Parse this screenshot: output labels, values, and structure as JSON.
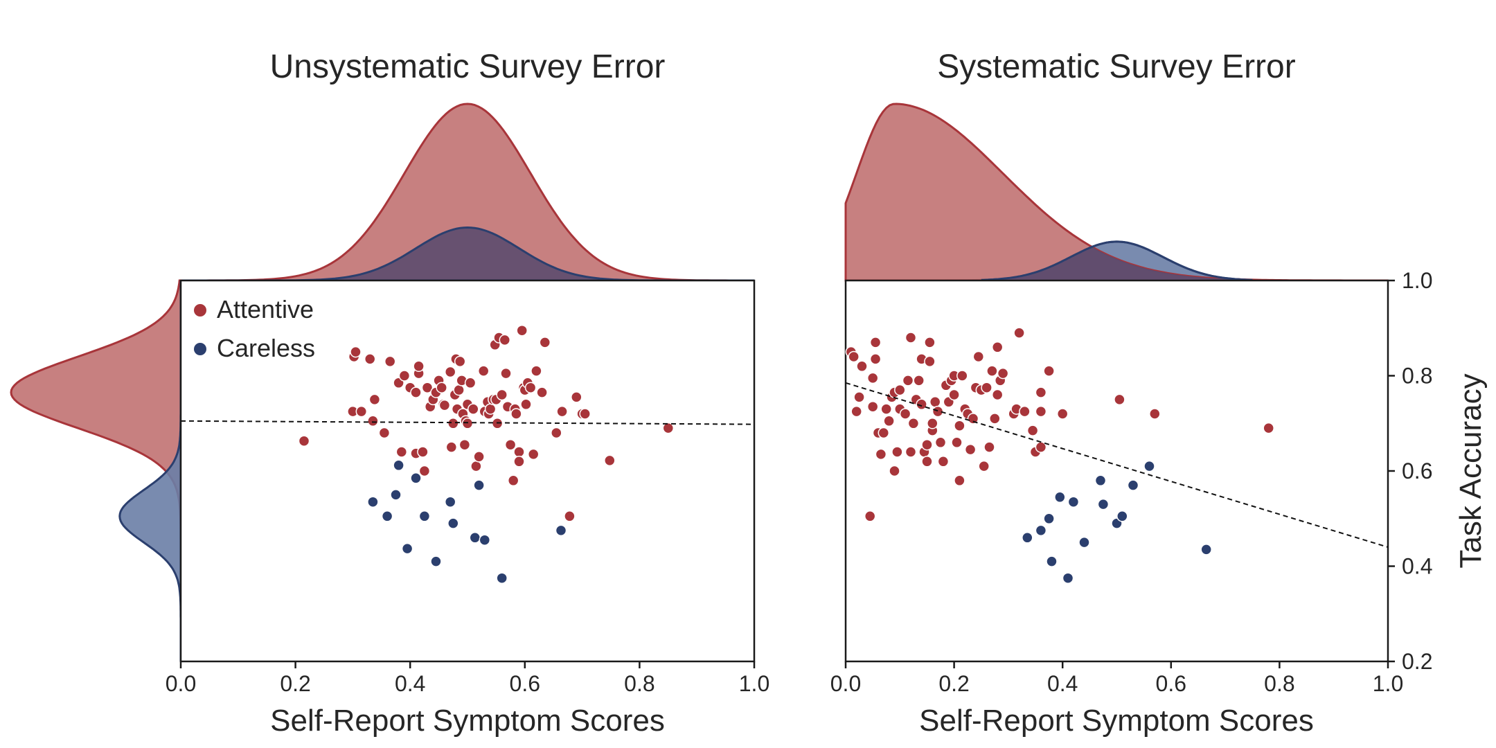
{
  "colors": {
    "attentive": "#a8353a",
    "attentive_fill": "#c17272",
    "careless": "#2b3f6e",
    "careless_fill": "#6a7ea6",
    "overlap_fill": "#5c4b6e",
    "axis": "#1a1a1a",
    "trend": "#111111"
  },
  "legend": {
    "attentive": "Attentive",
    "careless": "Careless",
    "position": "upper-left"
  },
  "chart_data": [
    {
      "type": "scatter",
      "title": "Unsystematic Survey Error",
      "xlabel": "Self-Report Symptom Scores",
      "ylabel": "",
      "xlim": [
        0.0,
        1.0
      ],
      "ylim": [
        0.2,
        1.0
      ],
      "xticks": [
        "0.0",
        "0.2",
        "0.4",
        "0.6",
        "0.8",
        "1.0"
      ],
      "grid": false,
      "trend_line": {
        "x": [
          0.0,
          1.0
        ],
        "y": [
          0.705,
          0.698
        ],
        "style": "dashed"
      },
      "marginal_x": {
        "attentive": {
          "mean": 0.5,
          "sd": 0.11,
          "peak": 1.0
        },
        "careless": {
          "mean": 0.5,
          "sd": 0.09,
          "peak": 0.3
        }
      },
      "marginal_y": {
        "attentive": {
          "mean": 0.765,
          "sd": 0.075,
          "peak": 1.0
        },
        "careless": {
          "mean": 0.505,
          "sd": 0.055,
          "peak": 0.36
        }
      },
      "series": [
        {
          "name": "Attentive",
          "points": [
            [
              0.215,
              0.663
            ],
            [
              0.302,
              0.84
            ],
            [
              0.305,
              0.85
            ],
            [
              0.3,
              0.725
            ],
            [
              0.315,
              0.725
            ],
            [
              0.33,
              0.835
            ],
            [
              0.335,
              0.705
            ],
            [
              0.338,
              0.75
            ],
            [
              0.355,
              0.68
            ],
            [
              0.365,
              0.83
            ],
            [
              0.38,
              0.785
            ],
            [
              0.385,
              0.64
            ],
            [
              0.39,
              0.8
            ],
            [
              0.4,
              0.775
            ],
            [
              0.41,
              0.765
            ],
            [
              0.41,
              0.637
            ],
            [
              0.415,
              0.805
            ],
            [
              0.415,
              0.82
            ],
            [
              0.422,
              0.64
            ],
            [
              0.425,
              0.6
            ],
            [
              0.43,
              0.775
            ],
            [
              0.435,
              0.735
            ],
            [
              0.44,
              0.75
            ],
            [
              0.445,
              0.765
            ],
            [
              0.45,
              0.79
            ],
            [
              0.455,
              0.775
            ],
            [
              0.458,
              0.74
            ],
            [
              0.46,
              0.738
            ],
            [
              0.47,
              0.808
            ],
            [
              0.472,
              0.65
            ],
            [
              0.475,
              0.7
            ],
            [
              0.478,
              0.76
            ],
            [
              0.48,
              0.835
            ],
            [
              0.482,
              0.73
            ],
            [
              0.485,
              0.77
            ],
            [
              0.487,
              0.83
            ],
            [
              0.49,
              0.79
            ],
            [
              0.492,
              0.72
            ],
            [
              0.495,
              0.655
            ],
            [
              0.497,
              0.705
            ],
            [
              0.5,
              0.74
            ],
            [
              0.5,
              0.7
            ],
            [
              0.505,
              0.785
            ],
            [
              0.51,
              0.73
            ],
            [
              0.515,
              0.61
            ],
            [
              0.52,
              0.63
            ],
            [
              0.528,
              0.81
            ],
            [
              0.53,
              0.725
            ],
            [
              0.535,
              0.745
            ],
            [
              0.537,
              0.72
            ],
            [
              0.54,
              0.73
            ],
            [
              0.545,
              0.75
            ],
            [
              0.548,
              0.865
            ],
            [
              0.55,
              0.75
            ],
            [
              0.552,
              0.7
            ],
            [
              0.555,
              0.88
            ],
            [
              0.56,
              0.76
            ],
            [
              0.565,
              0.875
            ],
            [
              0.567,
              0.805
            ],
            [
              0.57,
              0.735
            ],
            [
              0.575,
              0.655
            ],
            [
              0.58,
              0.58
            ],
            [
              0.583,
              0.73
            ],
            [
              0.585,
              0.72
            ],
            [
              0.59,
              0.64
            ],
            [
              0.59,
              0.62
            ],
            [
              0.595,
              0.895
            ],
            [
              0.598,
              0.775
            ],
            [
              0.6,
              0.77
            ],
            [
              0.602,
              0.74
            ],
            [
              0.605,
              0.785
            ],
            [
              0.61,
              0.775
            ],
            [
              0.615,
              0.635
            ],
            [
              0.62,
              0.81
            ],
            [
              0.63,
              0.765
            ],
            [
              0.635,
              0.87
            ],
            [
              0.655,
              0.68
            ],
            [
              0.665,
              0.725
            ],
            [
              0.678,
              0.505
            ],
            [
              0.69,
              0.755
            ],
            [
              0.7,
              0.72
            ],
            [
              0.705,
              0.72
            ],
            [
              0.748,
              0.622
            ],
            [
              0.85,
              0.69
            ]
          ]
        },
        {
          "name": "Careless",
          "points": [
            [
              0.335,
              0.535
            ],
            [
              0.36,
              0.505
            ],
            [
              0.375,
              0.55
            ],
            [
              0.38,
              0.612
            ],
            [
              0.395,
              0.437
            ],
            [
              0.41,
              0.585
            ],
            [
              0.425,
              0.505
            ],
            [
              0.445,
              0.41
            ],
            [
              0.47,
              0.535
            ],
            [
              0.475,
              0.49
            ],
            [
              0.513,
              0.46
            ],
            [
              0.52,
              0.57
            ],
            [
              0.53,
              0.455
            ],
            [
              0.56,
              0.375
            ],
            [
              0.663,
              0.475
            ]
          ]
        }
      ]
    },
    {
      "type": "scatter",
      "title": "Systematic Survey Error",
      "xlabel": "Self-Report Symptom Scores",
      "ylabel": "Task Accuracy",
      "xlim": [
        0.0,
        1.0
      ],
      "ylim": [
        0.2,
        1.0
      ],
      "xticks": [
        "0.0",
        "0.2",
        "0.4",
        "0.6",
        "0.8",
        "1.0"
      ],
      "yticks": [
        "0.2",
        "0.4",
        "0.6",
        "0.8",
        "1.0"
      ],
      "grid": false,
      "trend_line": {
        "x": [
          0.0,
          1.0
        ],
        "y": [
          0.785,
          0.44
        ],
        "style": "dashed"
      },
      "marginal_x": {
        "attentive": {
          "mode": 0.09,
          "sd_left": 0.07,
          "sd_right": 0.2,
          "peak": 1.0
        },
        "careless": {
          "mean": 0.5,
          "sd": 0.085,
          "peak": 0.22
        }
      },
      "series": [
        {
          "name": "Attentive",
          "points": [
            [
              0.01,
              0.85
            ],
            [
              0.015,
              0.84
            ],
            [
              0.02,
              0.725
            ],
            [
              0.025,
              0.755
            ],
            [
              0.03,
              0.82
            ],
            [
              0.045,
              0.505
            ],
            [
              0.05,
              0.735
            ],
            [
              0.05,
              0.795
            ],
            [
              0.055,
              0.835
            ],
            [
              0.055,
              0.87
            ],
            [
              0.06,
              0.68
            ],
            [
              0.065,
              0.635
            ],
            [
              0.07,
              0.68
            ],
            [
              0.075,
              0.73
            ],
            [
              0.08,
              0.705
            ],
            [
              0.085,
              0.755
            ],
            [
              0.09,
              0.6
            ],
            [
              0.09,
              0.765
            ],
            [
              0.095,
              0.64
            ],
            [
              0.1,
              0.77
            ],
            [
              0.1,
              0.73
            ],
            [
              0.11,
              0.72
            ],
            [
              0.115,
              0.79
            ],
            [
              0.12,
              0.88
            ],
            [
              0.12,
              0.64
            ],
            [
              0.125,
              0.7
            ],
            [
              0.13,
              0.75
            ],
            [
              0.135,
              0.79
            ],
            [
              0.14,
              0.835
            ],
            [
              0.14,
              0.74
            ],
            [
              0.145,
              0.64
            ],
            [
              0.15,
              0.62
            ],
            [
              0.15,
              0.655
            ],
            [
              0.155,
              0.83
            ],
            [
              0.155,
              0.87
            ],
            [
              0.16,
              0.685
            ],
            [
              0.16,
              0.7
            ],
            [
              0.165,
              0.745
            ],
            [
              0.17,
              0.725
            ],
            [
              0.175,
              0.66
            ],
            [
              0.18,
              0.62
            ],
            [
              0.185,
              0.78
            ],
            [
              0.19,
              0.745
            ],
            [
              0.195,
              0.79
            ],
            [
              0.2,
              0.76
            ],
            [
              0.2,
              0.8
            ],
            [
              0.205,
              0.66
            ],
            [
              0.21,
              0.695
            ],
            [
              0.21,
              0.58
            ],
            [
              0.215,
              0.8
            ],
            [
              0.22,
              0.73
            ],
            [
              0.225,
              0.72
            ],
            [
              0.23,
              0.645
            ],
            [
              0.235,
              0.71
            ],
            [
              0.24,
              0.775
            ],
            [
              0.245,
              0.84
            ],
            [
              0.25,
              0.77
            ],
            [
              0.255,
              0.61
            ],
            [
              0.26,
              0.775
            ],
            [
              0.265,
              0.65
            ],
            [
              0.27,
              0.81
            ],
            [
              0.275,
              0.71
            ],
            [
              0.28,
              0.86
            ],
            [
              0.28,
              0.76
            ],
            [
              0.285,
              0.79
            ],
            [
              0.29,
              0.805
            ],
            [
              0.31,
              0.72
            ],
            [
              0.315,
              0.73
            ],
            [
              0.32,
              0.89
            ],
            [
              0.33,
              0.725
            ],
            [
              0.345,
              0.685
            ],
            [
              0.35,
              0.64
            ],
            [
              0.36,
              0.65
            ],
            [
              0.36,
              0.765
            ],
            [
              0.36,
              0.725
            ],
            [
              0.375,
              0.81
            ],
            [
              0.4,
              0.72
            ],
            [
              0.505,
              0.75
            ],
            [
              0.57,
              0.72
            ],
            [
              0.78,
              0.69
            ]
          ]
        },
        {
          "name": "Careless",
          "points": [
            [
              0.335,
              0.46
            ],
            [
              0.36,
              0.475
            ],
            [
              0.375,
              0.5
            ],
            [
              0.38,
              0.41
            ],
            [
              0.395,
              0.545
            ],
            [
              0.41,
              0.375
            ],
            [
              0.42,
              0.535
            ],
            [
              0.44,
              0.45
            ],
            [
              0.47,
              0.58
            ],
            [
              0.475,
              0.53
            ],
            [
              0.5,
              0.49
            ],
            [
              0.51,
              0.505
            ],
            [
              0.53,
              0.57
            ],
            [
              0.56,
              0.61
            ],
            [
              0.665,
              0.435
            ]
          ]
        }
      ]
    }
  ]
}
